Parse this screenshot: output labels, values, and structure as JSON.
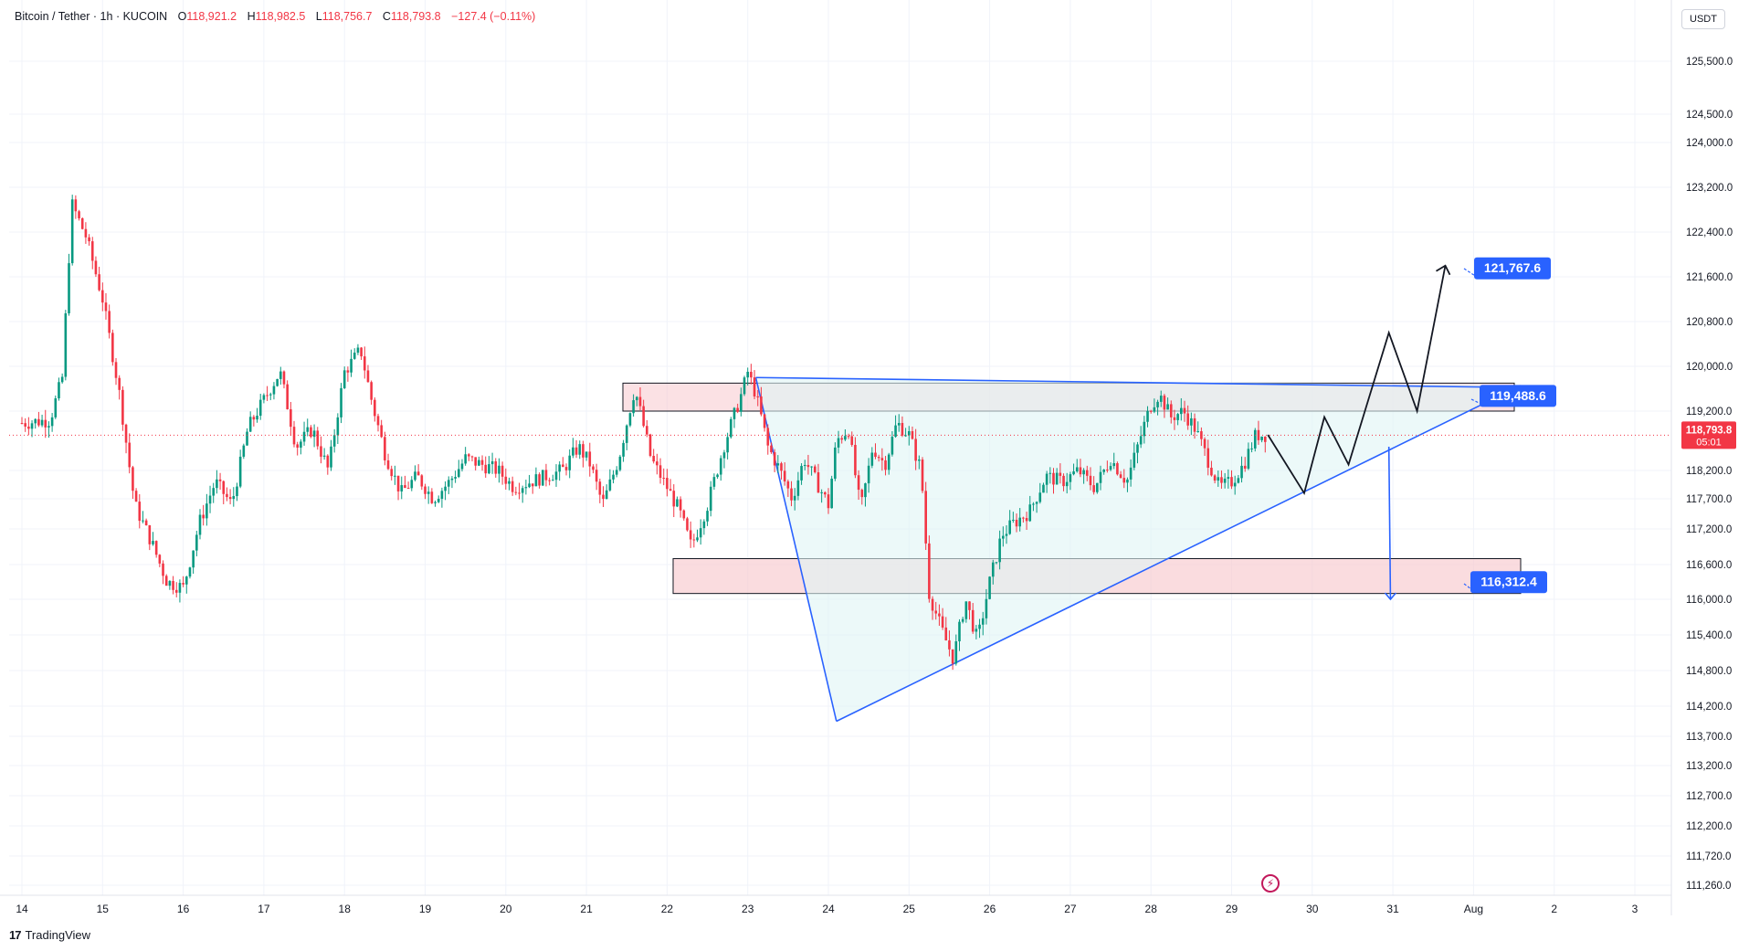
{
  "header": {
    "symbol": "Bitcoin / Tether · 1h · KUCOIN",
    "open_label": "O",
    "open": "118,921.2",
    "high_label": "H",
    "high": "118,982.5",
    "low_label": "L",
    "low": "118,756.7",
    "close_label": "C",
    "close": "118,793.8",
    "change": "−127.4 (−0.11%)"
  },
  "currency_button": "USDT",
  "brand": "TradingView",
  "brand_logo": "17",
  "flash_icon": "lightning-icon",
  "colors": {
    "up": "#089981",
    "down": "#f23645",
    "blue": "#2962ff",
    "zone": "#f8c9ce",
    "triangle": "#e0f5f5"
  },
  "chart_data": {
    "type": "candlestick",
    "x_ticks": [
      "14",
      "15",
      "16",
      "17",
      "18",
      "19",
      "20",
      "21",
      "22",
      "23",
      "24",
      "25",
      "26",
      "27",
      "28",
      "29",
      "30",
      "31",
      "Aug",
      "2",
      "3"
    ],
    "y_ticks": [
      111260,
      111720,
      112200,
      112700,
      113200,
      113700,
      114200,
      114800,
      115400,
      116000,
      116600,
      117200,
      117700,
      118200,
      119200,
      120000,
      120800,
      121600,
      122400,
      123200,
      124000,
      124500,
      125500
    ],
    "y_tick_labels": [
      "111,260.0",
      "111,720.0",
      "112,200.0",
      "112,700.0",
      "113,200.0",
      "113,700.0",
      "114,200.0",
      "114,800.0",
      "115,400.0",
      "116,000.0",
      "116,600.0",
      "117,200.0",
      "117,700.0",
      "118,200.0",
      "119,200.0",
      "120,000.0",
      "120,800.0",
      "121,600.0",
      "122,400.0",
      "123,200.0",
      "124,000.0",
      "124,500.0",
      "125,500.0"
    ],
    "last_price": "118,793.8",
    "countdown": "05:01",
    "close_path": [
      [
        0,
        119000
      ],
      [
        0.35,
        119050
      ],
      [
        0.5,
        119800
      ],
      [
        0.62,
        122900
      ],
      [
        0.8,
        122300
      ],
      [
        1.0,
        121200
      ],
      [
        1.2,
        119600
      ],
      [
        1.4,
        117600
      ],
      [
        1.6,
        117000
      ],
      [
        1.8,
        116300
      ],
      [
        2.0,
        116200
      ],
      [
        2.2,
        117300
      ],
      [
        2.4,
        118000
      ],
      [
        2.6,
        117600
      ],
      [
        2.8,
        118900
      ],
      [
        3.0,
        119400
      ],
      [
        3.2,
        119900
      ],
      [
        3.4,
        118600
      ],
      [
        3.6,
        118900
      ],
      [
        3.8,
        118200
      ],
      [
        4.0,
        119900
      ],
      [
        4.2,
        120300
      ],
      [
        4.35,
        119300
      ],
      [
        4.5,
        118500
      ],
      [
        4.7,
        117800
      ],
      [
        4.9,
        118100
      ],
      [
        5.1,
        117700
      ],
      [
        5.3,
        118000
      ],
      [
        5.5,
        118400
      ],
      [
        5.7,
        118300
      ],
      [
        5.9,
        118200
      ],
      [
        6.1,
        117900
      ],
      [
        6.3,
        118000
      ],
      [
        6.5,
        118100
      ],
      [
        6.7,
        118200
      ],
      [
        6.9,
        118600
      ],
      [
        7.05,
        118300
      ],
      [
        7.2,
        117600
      ],
      [
        7.4,
        118400
      ],
      [
        7.6,
        119600
      ],
      [
        7.8,
        118400
      ],
      [
        8.0,
        117900
      ],
      [
        8.15,
        117500
      ],
      [
        8.3,
        116900
      ],
      [
        8.5,
        117600
      ],
      [
        8.7,
        118600
      ],
      [
        8.9,
        119400
      ],
      [
        9.0,
        119900
      ],
      [
        9.1,
        119500
      ],
      [
        9.25,
        118600
      ],
      [
        9.4,
        118200
      ],
      [
        9.55,
        117700
      ],
      [
        9.7,
        118400
      ],
      [
        9.85,
        118000
      ],
      [
        10.0,
        117600
      ],
      [
        10.1,
        118700
      ],
      [
        10.25,
        118900
      ],
      [
        10.4,
        117500
      ],
      [
        10.55,
        118600
      ],
      [
        10.7,
        118300
      ],
      [
        10.85,
        119000
      ],
      [
        11.0,
        118800
      ],
      [
        11.15,
        118200
      ],
      [
        11.25,
        116100
      ],
      [
        11.4,
        115500
      ],
      [
        11.55,
        115000
      ],
      [
        11.7,
        116000
      ],
      [
        11.85,
        115300
      ],
      [
        12.0,
        116300
      ],
      [
        12.15,
        117100
      ],
      [
        12.3,
        117300
      ],
      [
        12.5,
        117500
      ],
      [
        12.7,
        118100
      ],
      [
        12.9,
        118000
      ],
      [
        13.1,
        118200
      ],
      [
        13.3,
        117900
      ],
      [
        13.5,
        118400
      ],
      [
        13.7,
        118000
      ],
      [
        13.9,
        118900
      ],
      [
        14.0,
        119300
      ],
      [
        14.1,
        119500
      ],
      [
        14.25,
        119100
      ],
      [
        14.4,
        119200
      ],
      [
        14.55,
        118900
      ],
      [
        14.7,
        118400
      ],
      [
        14.85,
        117900
      ],
      [
        15.0,
        118000
      ],
      [
        15.15,
        118300
      ],
      [
        15.3,
        118800
      ],
      [
        15.45,
        118800
      ]
    ],
    "projection": [
      [
        15.45,
        118800
      ],
      [
        15.9,
        117800
      ],
      [
        16.15,
        119100
      ],
      [
        16.45,
        118300
      ],
      [
        16.95,
        120600
      ],
      [
        17.3,
        119200
      ],
      [
        17.65,
        121800
      ]
    ],
    "down_arrow": [
      [
        16.95,
        118600
      ],
      [
        16.97,
        116000
      ]
    ],
    "resistance_zone": [
      119200,
      119700
    ],
    "support_zone": [
      116100,
      116700
    ],
    "triangle": [
      [
        9.1,
        119800
      ],
      [
        10.1,
        113950
      ],
      [
        17.65,
        119600
      ]
    ],
    "labels": [
      {
        "text": "121,767.6",
        "price": 121767.6
      },
      {
        "text": "119,488.6",
        "price": 119488.6
      },
      {
        "text": "116,312.4",
        "price": 116312.4
      }
    ]
  }
}
